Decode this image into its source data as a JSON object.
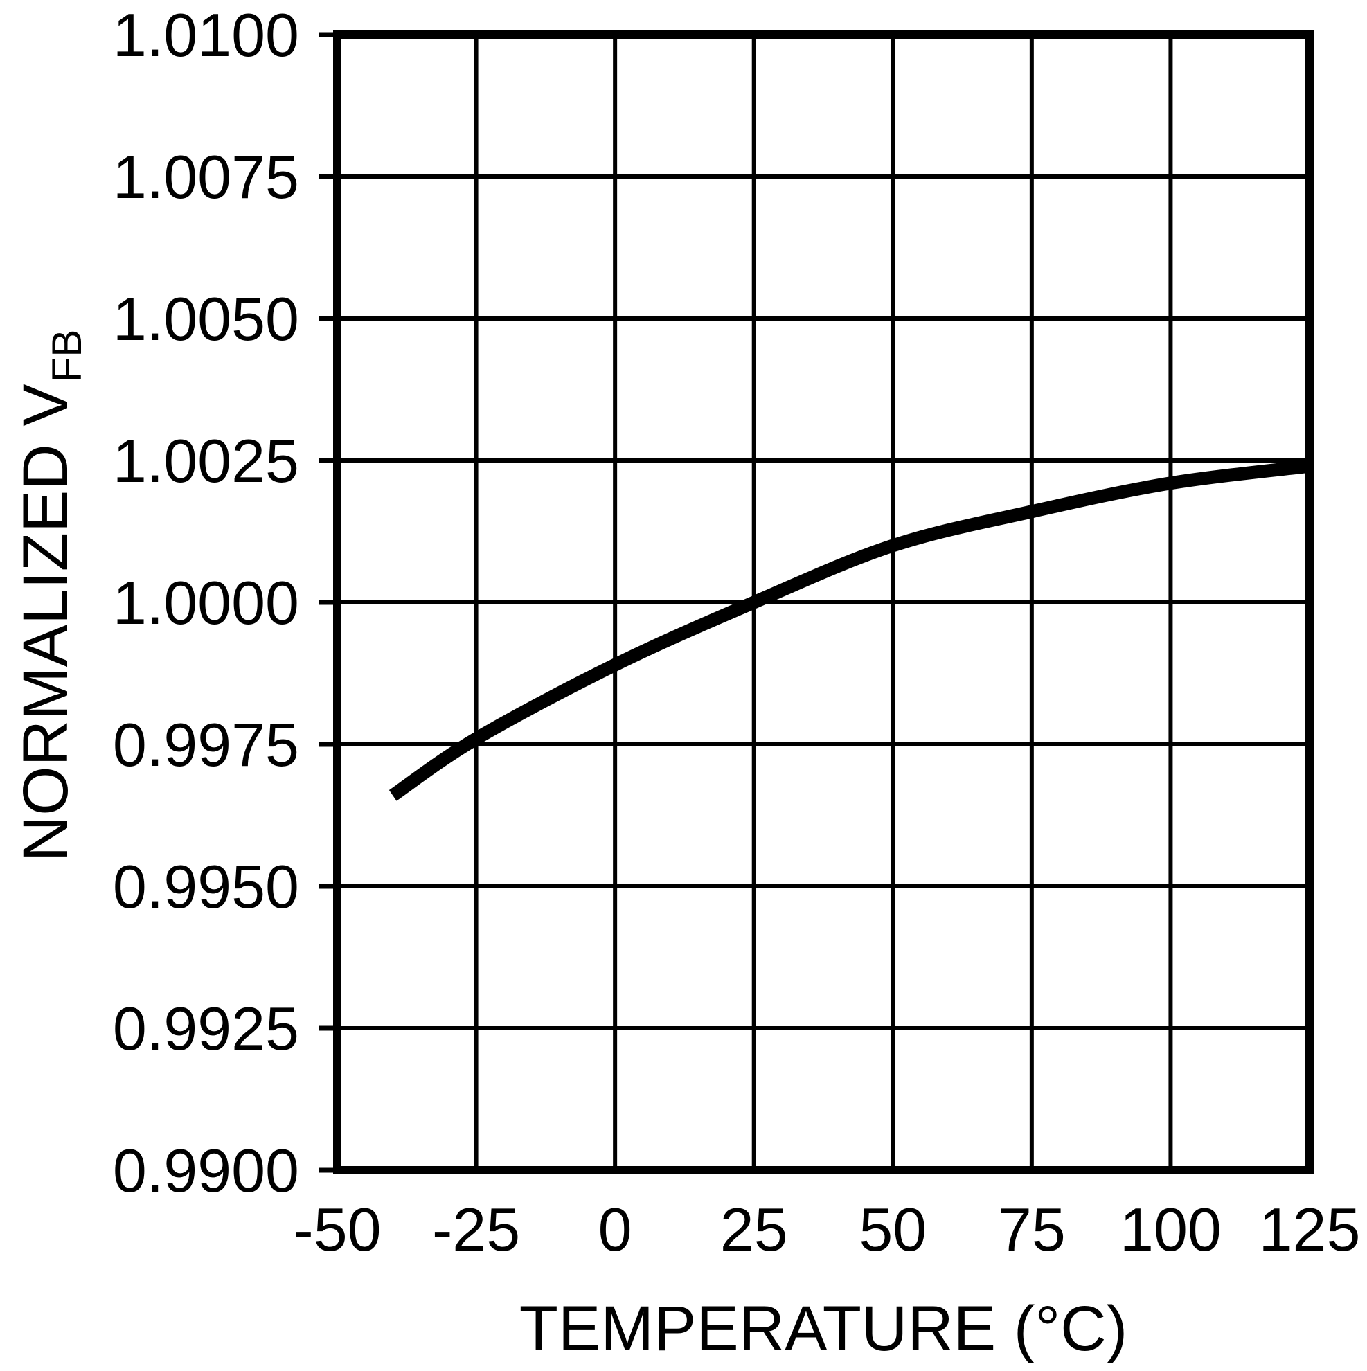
{
  "chart_data": {
    "type": "line",
    "title": "",
    "xlabel": "TEMPERATURE (°C)",
    "ylabel_main": "NORMALIZED V",
    "ylabel_sub": "FB",
    "xlim": [
      -50,
      125
    ],
    "ylim": [
      0.99,
      1.01
    ],
    "xtick_labels": [
      "-50",
      "-25",
      "0",
      "25",
      "50",
      "75",
      "100",
      "125"
    ],
    "xtick_values": [
      -50,
      -25,
      0,
      25,
      50,
      75,
      100,
      125
    ],
    "ytick_labels": [
      "1.0100",
      "1.0075",
      "1.0050",
      "1.0025",
      "1.0000",
      "0.9975",
      "0.9950",
      "0.9925",
      "0.9900"
    ],
    "ytick_values": [
      1.01,
      1.0075,
      1.005,
      1.0025,
      1.0,
      0.9975,
      0.995,
      0.9925,
      0.99
    ],
    "grid": true,
    "legend": "none",
    "series": [
      {
        "name": "normalized-vfb-vs-temperature",
        "x": [
          -40,
          -25,
          0,
          25,
          50,
          75,
          100,
          125
        ],
        "values": [
          0.9966,
          0.9976,
          0.9989,
          1.0,
          1.001,
          1.0016,
          1.0021,
          1.0024
        ]
      }
    ],
    "colors": {
      "background": "#ffffff",
      "axis": "#000000",
      "grid": "#000000",
      "curve": "#000000",
      "text": "#000000"
    }
  }
}
